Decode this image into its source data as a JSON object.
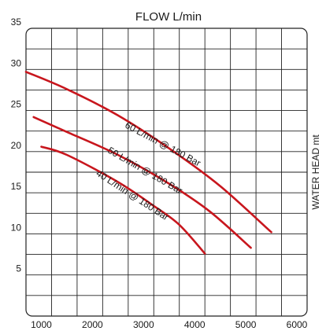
{
  "chart_data": {
    "type": "line",
    "title": "FLOW L/min",
    "xlabel": "",
    "ylabel": "WATER HEAD mt",
    "xlim": [
      700,
      6200
    ],
    "ylim": [
      0,
      35
    ],
    "x_ticks": [
      1000,
      2000,
      3000,
      4000,
      5000,
      6000
    ],
    "y_ticks": [
      5,
      10,
      15,
      20,
      25,
      30,
      35
    ],
    "grid": true,
    "series": [
      {
        "name": "60 L/min @ 180 Bar",
        "color": "#c8161d",
        "points": [
          [
            700,
            29.7
          ],
          [
            1500,
            27.6
          ],
          [
            2500,
            24.4
          ],
          [
            3500,
            20.4
          ],
          [
            4500,
            15.8
          ],
          [
            5500,
            10.2
          ]
        ]
      },
      {
        "name": "50 L/min @ 180 Bar",
        "color": "#c8161d",
        "points": [
          [
            850,
            24.2
          ],
          [
            1500,
            22.4
          ],
          [
            2500,
            19.6
          ],
          [
            3500,
            16.1
          ],
          [
            4300,
            12.7
          ],
          [
            5100,
            8.3
          ]
        ]
      },
      {
        "name": "40 L/min @ 180 Bar",
        "color": "#c8161d",
        "points": [
          [
            1000,
            20.6
          ],
          [
            1500,
            19.6
          ],
          [
            2500,
            16.3
          ],
          [
            3200,
            13.4
          ],
          [
            3700,
            11.1
          ],
          [
            4200,
            7.6
          ]
        ]
      }
    ]
  }
}
